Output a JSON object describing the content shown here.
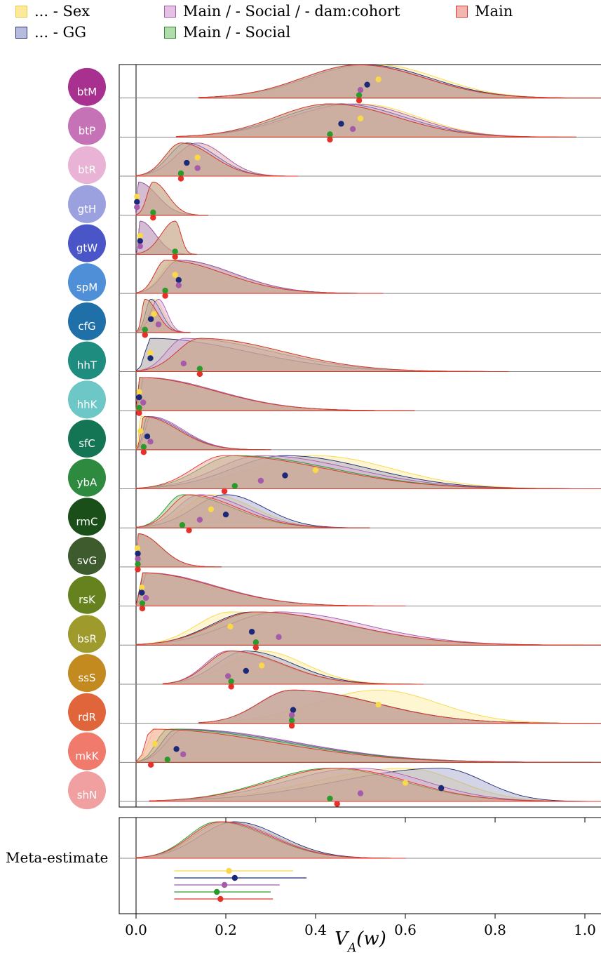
{
  "legend": {
    "items": [
      {
        "label": "... - Sex",
        "fill": "#fde99a",
        "stroke": "#e6c84a"
      },
      {
        "label": "... - GG",
        "fill": "#b8bcdc",
        "stroke": "#2a2f80"
      },
      {
        "label": "Main / - Social / - dam:cohort",
        "fill": "#e3c2e6",
        "stroke": "#a55aaa"
      },
      {
        "label": "Main / - Social",
        "fill": "#b2dcae",
        "stroke": "#2c8a2c"
      },
      {
        "label": "Main",
        "fill": "#f4b5b0",
        "stroke": "#d93a32"
      }
    ]
  },
  "colors": {
    "Sex": "#f9d84a",
    "GG": "#1b2a78",
    "DamCohort": "#a55aaa",
    "Social": "#2a9a2a",
    "Main": "#e8302a",
    "density_fill_combined": "#5e7a55"
  },
  "chart_data": {
    "type": "density",
    "xlabel": "V_A(w)",
    "xlim": [
      -0.04,
      1.035
    ],
    "xticks": [
      0.0,
      0.2,
      0.4,
      0.6,
      0.8,
      1.0
    ],
    "xtick_labels": [
      "0.0",
      "0.2",
      "0.4",
      "0.6",
      "0.8",
      "1.0"
    ],
    "series_order": [
      "Sex",
      "GG",
      "DamCohort",
      "Social",
      "Main"
    ],
    "species": [
      {
        "label": "btM",
        "icon_bg": "#a8308f",
        "points": {
          "Sex": 0.54,
          "GG": 0.515,
          "DamCohort": 0.5,
          "Social": 0.497,
          "Main": 0.497
        },
        "range": [
          0.14,
          1.035
        ]
      },
      {
        "label": "btP",
        "icon_bg": "#c573b6",
        "points": {
          "Sex": 0.5,
          "GG": 0.457,
          "DamCohort": 0.483,
          "Social": 0.432,
          "Main": 0.432
        },
        "range": [
          0.09,
          0.98
        ]
      },
      {
        "label": "btR",
        "icon_bg": "#e9b3d6",
        "points": {
          "Sex": 0.137,
          "GG": 0.113,
          "DamCohort": 0.137,
          "Social": 0.1,
          "Main": 0.1
        },
        "range": [
          0.0,
          0.36
        ]
      },
      {
        "label": "gtH",
        "icon_bg": "#9aa1de",
        "points": {
          "Sex": 0.002,
          "GG": 0.002,
          "DamCohort": 0.002,
          "Social": 0.038,
          "Main": 0.038
        },
        "range": [
          0.0,
          0.16
        ]
      },
      {
        "label": "gtW",
        "icon_bg": "#4a56c8",
        "points": {
          "Sex": 0.009,
          "GG": 0.009,
          "DamCohort": 0.009,
          "Social": 0.087,
          "Main": 0.087
        },
        "range": [
          0.0,
          0.135
        ]
      },
      {
        "label": "spM",
        "icon_bg": "#4f8fd8",
        "points": {
          "Sex": 0.087,
          "GG": 0.095,
          "DamCohort": 0.095,
          "Social": 0.065,
          "Main": 0.065
        },
        "range": [
          0.0,
          0.55
        ]
      },
      {
        "label": "cfG",
        "icon_bg": "#1f6fa8",
        "points": {
          "Sex": 0.04,
          "GG": 0.033,
          "DamCohort": 0.05,
          "Social": 0.02,
          "Main": 0.02
        },
        "range": [
          0.0,
          0.12
        ]
      },
      {
        "label": "hhT",
        "icon_bg": "#1f8c80",
        "points": {
          "Sex": 0.032,
          "GG": 0.032,
          "DamCohort": 0.106,
          "Social": 0.142,
          "Main": 0.142
        },
        "range": [
          0.0,
          0.83
        ]
      },
      {
        "label": "hhK",
        "icon_bg": "#6cc7c6",
        "points": {
          "Sex": 0.007,
          "GG": 0.007,
          "DamCohort": 0.016,
          "Social": 0.007,
          "Main": 0.007
        },
        "range": [
          0.0,
          0.62
        ]
      },
      {
        "label": "sfC",
        "icon_bg": "#137553",
        "points": {
          "Sex": 0.01,
          "GG": 0.025,
          "DamCohort": 0.032,
          "Social": 0.017,
          "Main": 0.017
        },
        "range": [
          0.0,
          0.3
        ]
      },
      {
        "label": "ybA",
        "icon_bg": "#2e8a3e",
        "points": {
          "Sex": 0.4,
          "GG": 0.332,
          "DamCohort": 0.278,
          "Social": 0.22,
          "Main": 0.197
        },
        "range": [
          0.0,
          1.035
        ]
      },
      {
        "label": "rmC",
        "icon_bg": "#1a4f1a",
        "points": {
          "Sex": 0.167,
          "GG": 0.2,
          "DamCohort": 0.142,
          "Social": 0.103,
          "Main": 0.118
        },
        "range": [
          0.0,
          0.52
        ]
      },
      {
        "label": "svG",
        "icon_bg": "#3d5b2d",
        "points": {
          "Sex": 0.003,
          "GG": 0.004,
          "DamCohort": 0.004,
          "Social": 0.004,
          "Main": 0.004
        },
        "range": [
          0.0,
          0.19
        ]
      },
      {
        "label": "rsK",
        "icon_bg": "#66821f",
        "points": {
          "Sex": 0.013,
          "GG": 0.013,
          "DamCohort": 0.022,
          "Social": 0.014,
          "Main": 0.014
        },
        "range": [
          0.0,
          0.6
        ]
      },
      {
        "label": "bsR",
        "icon_bg": "#9e9a2c",
        "points": {
          "Sex": 0.21,
          "GG": 0.258,
          "DamCohort": 0.318,
          "Social": 0.267,
          "Main": 0.267
        },
        "range": [
          0.0,
          1.035
        ]
      },
      {
        "label": "ssS",
        "icon_bg": "#c28a1f",
        "points": {
          "Sex": 0.28,
          "GG": 0.245,
          "DamCohort": 0.205,
          "Social": 0.212,
          "Main": 0.212
        },
        "range": [
          0.06,
          0.64
        ]
      },
      {
        "label": "rdR",
        "icon_bg": "#e1653a",
        "points": {
          "Sex": 0.54,
          "GG": 0.35,
          "DamCohort": 0.347,
          "Social": 0.347,
          "Main": 0.347
        },
        "range": [
          0.14,
          1.035
        ]
      },
      {
        "label": "mkK",
        "icon_bg": "#f07a6c",
        "points": {
          "Sex": 0.042,
          "GG": 0.09,
          "DamCohort": 0.105,
          "Social": 0.07,
          "Main": 0.033
        },
        "range": [
          0.0,
          1.035
        ]
      },
      {
        "label": "shN",
        "icon_bg": "#f0a0a0",
        "points": {
          "Sex": 0.6,
          "GG": 0.68,
          "DamCohort": 0.5,
          "Social": 0.432,
          "Main": 0.448
        },
        "range": [
          0.03,
          1.035
        ]
      }
    ],
    "meta": {
      "label": "Meta-estimate",
      "density_range": [
        0.0,
        0.6
      ],
      "estimates": [
        {
          "series": "Sex",
          "point": 0.207,
          "lo": 0.085,
          "hi": 0.35
        },
        {
          "series": "GG",
          "point": 0.22,
          "lo": 0.085,
          "hi": 0.38
        },
        {
          "series": "DamCohort",
          "point": 0.197,
          "lo": 0.085,
          "hi": 0.32
        },
        {
          "series": "Social",
          "point": 0.18,
          "lo": 0.085,
          "hi": 0.3
        },
        {
          "series": "Main",
          "point": 0.188,
          "lo": 0.085,
          "hi": 0.305
        }
      ]
    }
  }
}
